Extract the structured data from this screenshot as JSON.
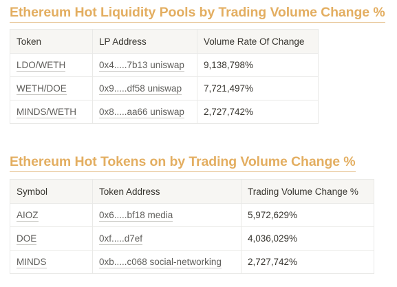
{
  "pools": {
    "title": "Ethereum Hot Liquidity Pools by Trading Volume Change %",
    "headers": [
      "Token",
      "LP Address",
      "Volume Rate Of Change"
    ],
    "rows": [
      {
        "token": "LDO/WETH",
        "address": "0x4.....7b13 uniswap",
        "change": "9,138,798%"
      },
      {
        "token": "WETH/DOE",
        "address": "0x9.....df58 uniswap",
        "change": "7,721,497%"
      },
      {
        "token": "MINDS/WETH",
        "address": "0x8.....aa66 uniswap",
        "change": "2,727,742%"
      }
    ]
  },
  "tokens": {
    "title": "Ethereum Hot Tokens on by Trading Volume Change %",
    "headers": [
      "Symbol",
      "Token Address",
      "Trading Volume Change %"
    ],
    "rows": [
      {
        "symbol": "AIOZ",
        "address": "0x6.....bf18 media",
        "change": "5,972,629%"
      },
      {
        "symbol": "DOE",
        "address": "0xf.....d7ef",
        "change": "4,036,029%"
      },
      {
        "symbol": "MINDS",
        "address": "0xb.....c068 social-networking",
        "change": "2,727,742%"
      }
    ]
  },
  "colors": {
    "title": "#e3ae61",
    "header_bg": "#f7f6f3",
    "border": "#e9e9e7",
    "text": "#37352f"
  }
}
